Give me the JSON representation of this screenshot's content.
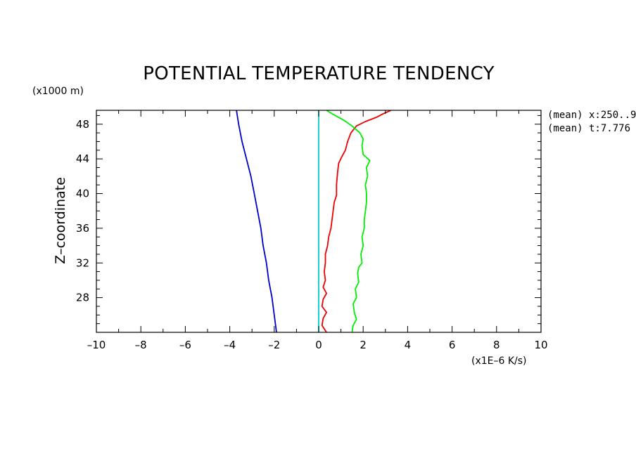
{
  "chart_data": {
    "type": "line",
    "title": "POTENTIAL TEMPERATURE TENDENCY",
    "xlabel": "",
    "ylabel": "Z–coordinate",
    "x_units": "(x1E–6 K/s)",
    "y_units": "(x1000 m)",
    "xlim": [
      -10,
      10
    ],
    "ylim": [
      24,
      49.6
    ],
    "x_ticks": [
      -10,
      -8,
      -6,
      -4,
      -2,
      0,
      2,
      4,
      6,
      8,
      10
    ],
    "x_tick_labels": [
      "–10",
      "–8",
      "–6",
      "–4",
      "–2",
      "0",
      "2",
      "4",
      "6",
      "8",
      "10"
    ],
    "y_ticks": [
      28,
      32,
      36,
      40,
      44,
      48
    ],
    "y_tick_labels": [
      "28",
      "32",
      "36",
      "40",
      "44",
      "48"
    ],
    "annotations": [
      "(mean) x:250..9",
      "(mean) t:7.776"
    ],
    "grid": false,
    "series": [
      {
        "color": "#0000cc",
        "points": [
          [
            -1.9,
            24.0
          ],
          [
            -2.0,
            26.0
          ],
          [
            -2.1,
            28.0
          ],
          [
            -2.25,
            30.0
          ],
          [
            -2.35,
            32.0
          ],
          [
            -2.5,
            34.0
          ],
          [
            -2.6,
            36.0
          ],
          [
            -2.75,
            38.0
          ],
          [
            -2.9,
            40.0
          ],
          [
            -3.05,
            42.0
          ],
          [
            -3.25,
            44.0
          ],
          [
            -3.45,
            46.0
          ],
          [
            -3.6,
            48.0
          ],
          [
            -3.7,
            49.6
          ]
        ]
      },
      {
        "color": "#00cccc",
        "points": [
          [
            0.0,
            24.0
          ],
          [
            0.0,
            49.6
          ]
        ]
      },
      {
        "color": "#ee0000",
        "points": [
          [
            0.35,
            24.0
          ],
          [
            0.15,
            24.8
          ],
          [
            0.2,
            25.6
          ],
          [
            0.35,
            26.3
          ],
          [
            0.15,
            27.0
          ],
          [
            0.2,
            27.8
          ],
          [
            0.35,
            28.5
          ],
          [
            0.2,
            29.2
          ],
          [
            0.3,
            30.0
          ],
          [
            0.25,
            31.0
          ],
          [
            0.3,
            32.0
          ],
          [
            0.3,
            33.0
          ],
          [
            0.4,
            34.0
          ],
          [
            0.45,
            35.0
          ],
          [
            0.55,
            36.0
          ],
          [
            0.6,
            37.0
          ],
          [
            0.65,
            38.0
          ],
          [
            0.7,
            39.0
          ],
          [
            0.8,
            39.8
          ],
          [
            0.8,
            41.0
          ],
          [
            0.85,
            42.5
          ],
          [
            0.9,
            43.5
          ],
          [
            1.05,
            44.3
          ],
          [
            1.2,
            45.0
          ],
          [
            1.3,
            46.0
          ],
          [
            1.45,
            47.0
          ],
          [
            1.7,
            47.8
          ],
          [
            2.1,
            48.3
          ],
          [
            2.6,
            48.8
          ],
          [
            2.9,
            49.2
          ],
          [
            3.25,
            49.6
          ]
        ]
      },
      {
        "color": "#00ee00",
        "points": [
          [
            1.5,
            24.0
          ],
          [
            1.55,
            24.8
          ],
          [
            1.7,
            25.5
          ],
          [
            1.6,
            26.3
          ],
          [
            1.55,
            27.3
          ],
          [
            1.7,
            28.0
          ],
          [
            1.65,
            29.0
          ],
          [
            1.8,
            29.8
          ],
          [
            1.75,
            30.8
          ],
          [
            1.8,
            31.5
          ],
          [
            1.95,
            32.0
          ],
          [
            1.9,
            33.0
          ],
          [
            2.0,
            34.0
          ],
          [
            1.95,
            35.0
          ],
          [
            2.05,
            36.0
          ],
          [
            2.05,
            37.0
          ],
          [
            2.1,
            38.0
          ],
          [
            2.15,
            39.0
          ],
          [
            2.15,
            40.0
          ],
          [
            2.1,
            41.0
          ],
          [
            2.2,
            42.0
          ],
          [
            2.15,
            43.0
          ],
          [
            2.3,
            43.8
          ],
          [
            2.0,
            44.5
          ],
          [
            1.95,
            45.5
          ],
          [
            2.0,
            46.3
          ],
          [
            1.85,
            47.0
          ],
          [
            1.5,
            47.8
          ],
          [
            1.1,
            48.5
          ],
          [
            0.6,
            49.2
          ],
          [
            0.35,
            49.6
          ]
        ]
      }
    ]
  }
}
